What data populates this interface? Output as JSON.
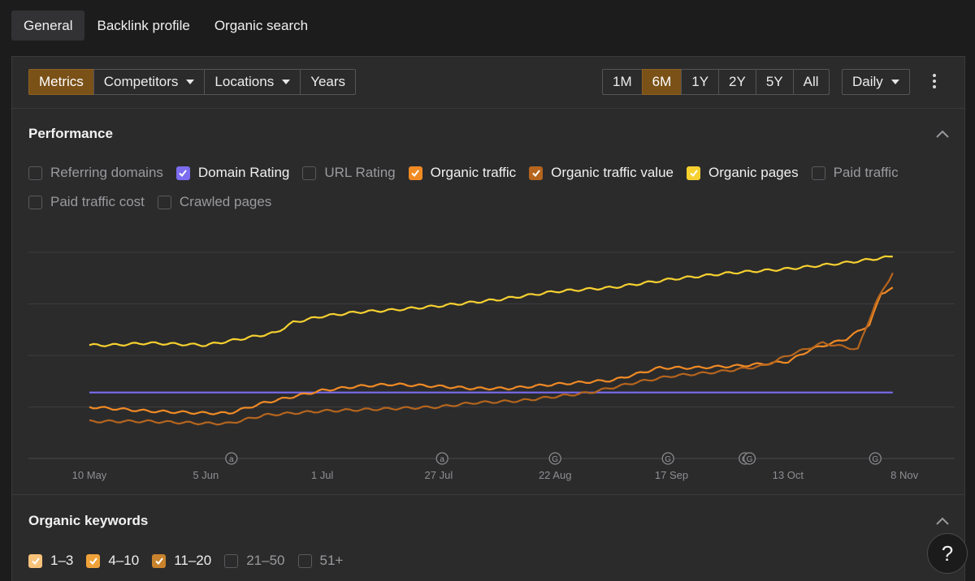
{
  "tabs": [
    "General",
    "Backlink profile",
    "Organic search"
  ],
  "toolbar": {
    "metrics": "Metrics",
    "competitors": "Competitors",
    "locations": "Locations",
    "years": "Years",
    "ranges": [
      "1M",
      "6M",
      "1Y",
      "2Y",
      "5Y",
      "All"
    ],
    "active_range": "6M",
    "interval": "Daily"
  },
  "performance": {
    "title": "Performance",
    "checkboxes": [
      {
        "label": "Referring domains",
        "checked": false,
        "color": ""
      },
      {
        "label": "Domain Rating",
        "checked": true,
        "color": "#7b6cf0"
      },
      {
        "label": "URL Rating",
        "checked": false,
        "color": ""
      },
      {
        "label": "Organic traffic",
        "checked": true,
        "color": "#f08a24"
      },
      {
        "label": "Organic traffic value",
        "checked": true,
        "color": "#b5651d"
      },
      {
        "label": "Organic pages",
        "checked": true,
        "color": "#f6d02f"
      },
      {
        "label": "Paid traffic",
        "checked": false,
        "color": ""
      },
      {
        "label": "Paid traffic cost",
        "checked": false,
        "color": ""
      },
      {
        "label": "Crawled pages",
        "checked": false,
        "color": ""
      }
    ]
  },
  "chart_data": {
    "type": "line",
    "x_labels": [
      "10 May",
      "5 Jun",
      "1 Jul",
      "27 Jul",
      "22 Aug",
      "17 Sep",
      "13 Oct",
      "8 Nov"
    ],
    "annotations": [
      {
        "date_index": 1.22,
        "marker": "a"
      },
      {
        "date_index": 3.03,
        "marker": "a"
      },
      {
        "date_index": 4.0,
        "marker": "G"
      },
      {
        "date_index": 4.97,
        "marker": "G"
      },
      {
        "date_index": 5.63,
        "marker": "G"
      },
      {
        "date_index": 5.67,
        "marker": "G"
      },
      {
        "date_index": 6.75,
        "marker": "G"
      }
    ],
    "ylim": [
      0,
      100
    ],
    "grid": true,
    "series": [
      {
        "name": "Organic pages",
        "color": "#f6d02f",
        "x": [
          0,
          0.2,
          0.5,
          1.0,
          1.3,
          1.6,
          1.75,
          2.0,
          2.3,
          2.6,
          3.0,
          3.5,
          4.0,
          4.5,
          5.0,
          5.5,
          6.0,
          6.5,
          6.9
        ],
        "y": [
          55,
          55,
          56,
          55,
          58,
          61,
          66,
          69,
          71,
          72,
          74,
          77,
          81,
          83,
          87,
          90,
          92,
          95,
          98
        ]
      },
      {
        "name": "Domain Rating",
        "color": "#7b6cf0",
        "x": [
          0,
          6.9
        ],
        "y": [
          32,
          32
        ]
      },
      {
        "name": "Organic traffic",
        "color": "#f08a24",
        "x": [
          0,
          0.5,
          1.0,
          1.2,
          1.5,
          1.75,
          2.0,
          2.3,
          2.6,
          3.0,
          3.3,
          3.6,
          4.0,
          4.5,
          4.9,
          5.2,
          5.6,
          6.0,
          6.2,
          6.5,
          6.7,
          6.8,
          6.9
        ],
        "y": [
          25,
          23,
          22,
          22,
          27,
          30,
          33,
          35,
          36,
          35,
          34,
          34,
          36,
          38,
          44,
          44,
          45,
          47,
          53,
          58,
          65,
          80,
          83
        ]
      },
      {
        "name": "Organic traffic value",
        "color": "#b5651d",
        "x": [
          0,
          0.5,
          1.0,
          1.2,
          1.5,
          2.0,
          2.5,
          3.0,
          3.3,
          3.7,
          4.0,
          4.3,
          4.7,
          5.0,
          5.4,
          5.8,
          6.0,
          6.3,
          6.6,
          6.75,
          6.9
        ],
        "y": [
          18,
          18,
          17,
          17,
          21,
          23,
          24,
          25,
          27,
          28,
          30,
          32,
          37,
          40,
          42,
          45,
          50,
          56,
          53,
          75,
          90
        ]
      }
    ]
  },
  "keywords": {
    "title": "Organic keywords",
    "checkboxes": [
      {
        "label": "1–3",
        "checked": true,
        "color": "#f7c27a"
      },
      {
        "label": "4–10",
        "checked": true,
        "color": "#f0a23a"
      },
      {
        "label": "11–20",
        "checked": true,
        "color": "#c8832c"
      },
      {
        "label": "21–50",
        "checked": false,
        "color": ""
      },
      {
        "label": "51+",
        "checked": false,
        "color": ""
      }
    ]
  },
  "help_label": "?"
}
